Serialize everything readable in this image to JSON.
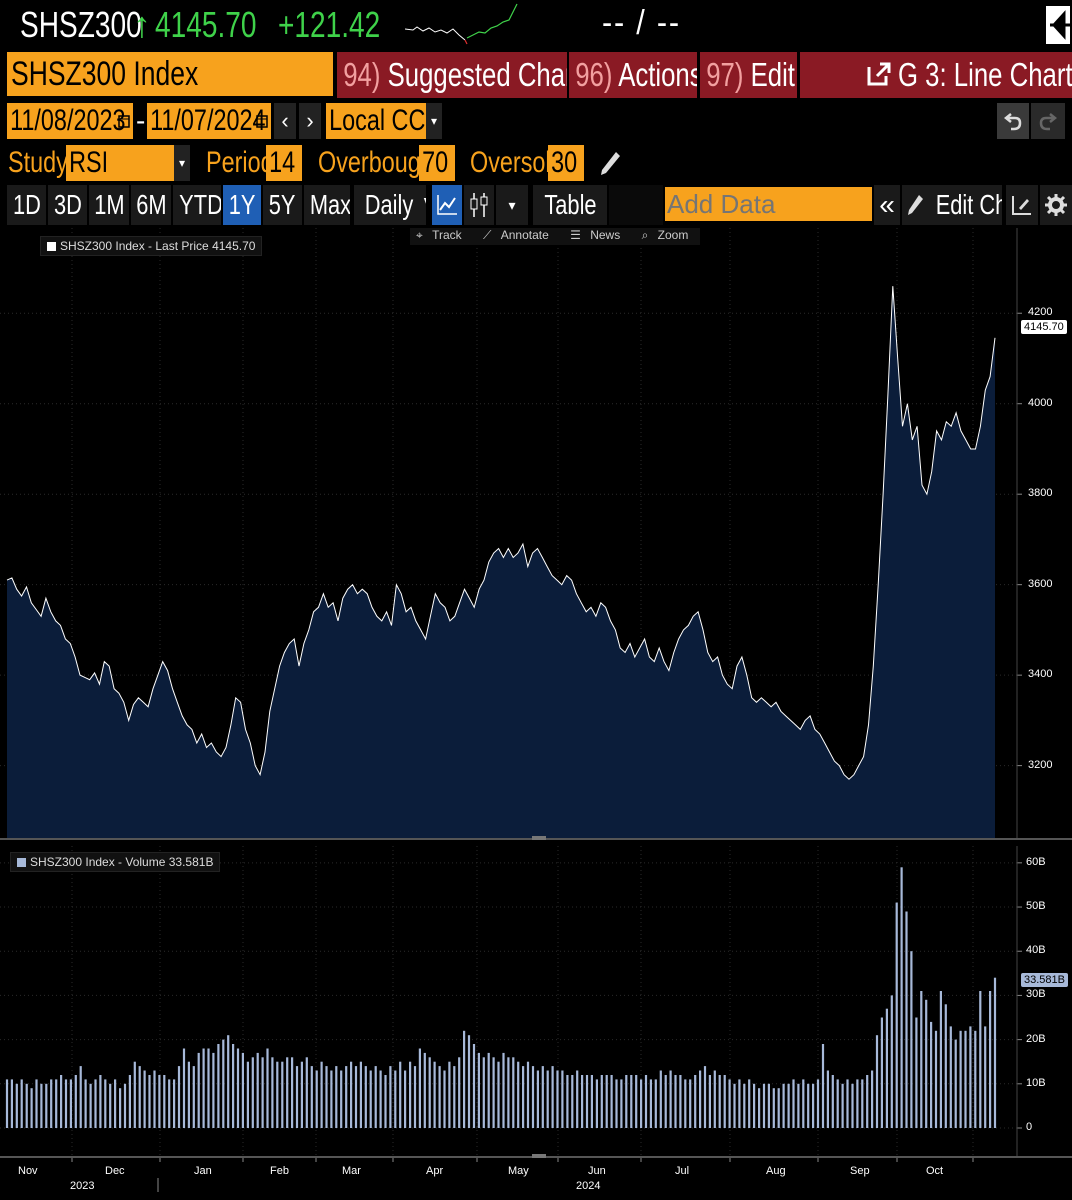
{
  "header": {
    "ticker": "SHSZ300",
    "direction_arrow": "↑",
    "last_price": "4145.70",
    "change": "+121.42",
    "bid_ask": "-- / --"
  },
  "toolbar_top": {
    "security": "SHSZ300 Index",
    "suggested_num": "94)",
    "suggested_label": "Suggested Charts",
    "actions_num": "96)",
    "actions_label": "Actions",
    "edit_num": "97)",
    "edit_label": "Edit",
    "chart_name": "G 3: Line Chart",
    "caret": "▾"
  },
  "dates": {
    "start": "11/08/2023",
    "separator": "-",
    "end": "11/07/2024",
    "currency": "Local CCY",
    "prev": "‹",
    "next": "›"
  },
  "study": {
    "label": "Study",
    "value": "RSI",
    "period_label": "Period",
    "period_value": "14",
    "overbought_label": "Overbought",
    "overbought_value": "70",
    "oversold_label": "Oversold",
    "oversold_value": "30"
  },
  "range_bar": {
    "ranges": [
      "1D",
      "3D",
      "1M",
      "6M",
      "YTD",
      "1Y",
      "5Y",
      "Max"
    ],
    "active_range": "1Y",
    "frequency": "Daily ▼",
    "table_label": "Table",
    "add_data_placeholder": "Add Data",
    "collapse": "«",
    "edit_chart_label": "Edit Chart"
  },
  "chart_tools": {
    "track": "Track",
    "annotate": "Annotate",
    "news": "News",
    "zoom": "Zoom"
  },
  "colors": {
    "orange": "#f7a21d",
    "red_button": "#8a1a24",
    "green": "#3fd24a",
    "price_fill": "#0b1d3a",
    "volume_bar": "#a7b9d9",
    "active_blue": "#1f5fb5"
  },
  "chart_data": [
    {
      "type": "area",
      "legend": "SHSZ300 Index - Last Price 4145.70",
      "last_value_label": "4145.70",
      "ylim": [
        3040,
        4300
      ],
      "yticks": [
        3200,
        3400,
        3600,
        3800,
        4000,
        4200
      ],
      "ytick_labels": [
        "3200",
        "3400",
        "3600",
        "3800",
        "4000",
        "4200"
      ],
      "grid": true,
      "series": [
        {
          "values": [
            3610,
            3615,
            3590,
            3575,
            3595,
            3560,
            3545,
            3530,
            3570,
            3540,
            3520,
            3510,
            3480,
            3470,
            3440,
            3400,
            3395,
            3390,
            3405,
            3380,
            3430,
            3420,
            3370,
            3360,
            3340,
            3300,
            3335,
            3350,
            3340,
            3330,
            3370,
            3400,
            3430,
            3410,
            3370,
            3340,
            3310,
            3290,
            3280,
            3250,
            3270,
            3240,
            3250,
            3230,
            3220,
            3240,
            3290,
            3350,
            3340,
            3280,
            3250,
            3200,
            3180,
            3230,
            3320,
            3370,
            3420,
            3450,
            3470,
            3480,
            3420,
            3470,
            3500,
            3540,
            3550,
            3580,
            3550,
            3560,
            3520,
            3570,
            3590,
            3600,
            3580,
            3590,
            3580,
            3550,
            3530,
            3520,
            3540,
            3510,
            3600,
            3580,
            3540,
            3550,
            3520,
            3500,
            3480,
            3530,
            3580,
            3560,
            3550,
            3520,
            3530,
            3560,
            3590,
            3570,
            3550,
            3590,
            3610,
            3650,
            3670,
            3680,
            3660,
            3680,
            3660,
            3670,
            3690,
            3640,
            3670,
            3680,
            3660,
            3640,
            3620,
            3610,
            3600,
            3620,
            3610,
            3580,
            3560,
            3540,
            3550,
            3530,
            3560,
            3550,
            3520,
            3500,
            3460,
            3450,
            3470,
            3440,
            3460,
            3480,
            3440,
            3430,
            3460,
            3430,
            3410,
            3450,
            3480,
            3500,
            3510,
            3530,
            3540,
            3500,
            3450,
            3430,
            3440,
            3400,
            3380,
            3370,
            3420,
            3440,
            3400,
            3350,
            3340,
            3350,
            3340,
            3330,
            3340,
            3320,
            3310,
            3300,
            3290,
            3280,
            3300,
            3310,
            3280,
            3270,
            3250,
            3230,
            3210,
            3200,
            3180,
            3170,
            3180,
            3200,
            3220,
            3290,
            3420,
            3600,
            3800,
            4020,
            4260,
            4100,
            3950,
            4000,
            3920,
            3950,
            3820,
            3800,
            3850,
            3940,
            3920,
            3960,
            3950,
            3980,
            3940,
            3920,
            3900,
            3900,
            3950,
            4030,
            4060,
            4145.7
          ]
        }
      ]
    },
    {
      "type": "bar",
      "legend": "SHSZ300 Index - Volume 33.581B",
      "last_value_label": "33.581B",
      "ylim": [
        0,
        62
      ],
      "yticks": [
        0,
        10,
        20,
        30,
        40,
        50,
        60
      ],
      "ytick_labels": [
        "0",
        "10B",
        "20B",
        "30B",
        "40B",
        "50B",
        "60B"
      ],
      "grid": true,
      "series": [
        {
          "values": [
            11,
            11,
            10,
            11,
            10,
            9,
            11,
            10,
            10,
            11,
            11,
            12,
            11,
            11,
            12,
            14,
            11,
            10,
            11,
            12,
            11,
            10,
            11,
            9,
            10,
            12,
            15,
            14,
            13,
            12,
            13,
            12,
            12,
            11,
            11,
            14,
            18,
            15,
            14,
            17,
            18,
            18,
            17,
            19,
            20,
            21,
            19,
            18,
            17,
            15,
            16,
            17,
            16,
            18,
            16,
            15,
            15,
            16,
            16,
            14,
            15,
            16,
            14,
            13,
            15,
            14,
            13,
            14,
            13,
            14,
            15,
            14,
            15,
            14,
            13,
            14,
            13,
            12,
            14,
            13,
            15,
            13,
            15,
            14,
            18,
            17,
            16,
            15,
            14,
            13,
            15,
            14,
            16,
            22,
            21,
            19,
            17,
            16,
            17,
            16,
            15,
            17,
            16,
            16,
            15,
            14,
            15,
            14,
            13,
            14,
            13,
            14,
            13,
            13,
            12,
            12,
            13,
            12,
            12,
            12,
            11,
            12,
            12,
            12,
            11,
            11,
            12,
            12,
            12,
            11,
            12,
            11,
            11,
            13,
            12,
            13,
            12,
            12,
            11,
            11,
            12,
            13,
            14,
            12,
            13,
            12,
            12,
            11,
            10,
            11,
            10,
            11,
            10,
            9,
            10,
            10,
            9,
            9,
            10,
            10,
            11,
            10,
            11,
            10,
            10,
            11,
            19,
            13,
            12,
            11,
            10,
            11,
            10,
            11,
            11,
            12,
            13,
            21,
            25,
            27,
            30,
            51,
            59,
            49,
            40,
            25,
            31,
            29,
            24,
            22,
            31,
            28,
            23,
            20,
            22,
            22,
            23,
            22,
            31,
            23,
            31,
            34
          ]
        }
      ]
    }
  ],
  "xaxis": {
    "months": [
      "Nov",
      "Dec",
      "Jan",
      "Feb",
      "Mar",
      "Apr",
      "May",
      "Jun",
      "Jul",
      "Aug",
      "Sep",
      "Oct"
    ],
    "years": [
      "2023",
      "2024"
    ]
  }
}
